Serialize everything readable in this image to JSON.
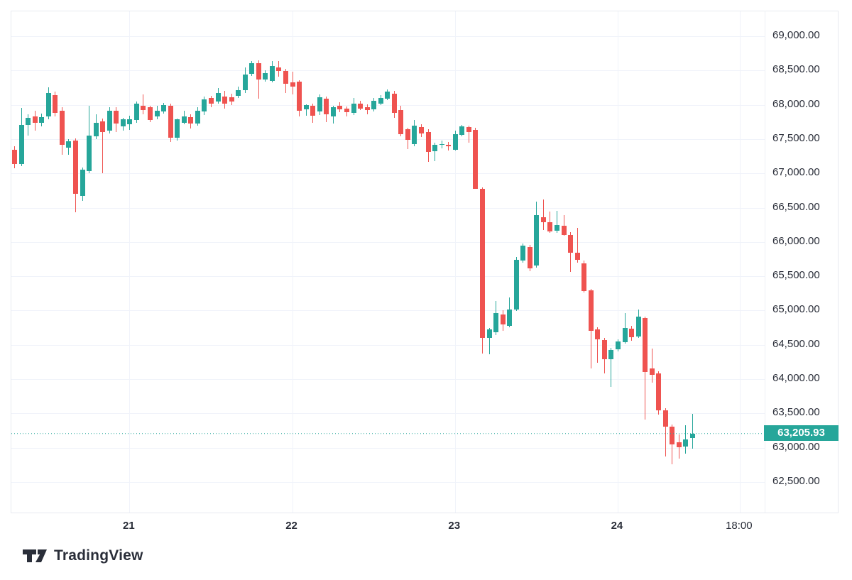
{
  "brand": {
    "logo_text": "TradingView"
  },
  "price_label": {
    "text": "63,205.93"
  },
  "colors": {
    "up": "#26a69a",
    "down": "#ef5350",
    "grid": "#f0f3fa",
    "axis_text": "#2a2e39",
    "border": "#e7eaf0",
    "price_line": "#26a69a",
    "price_label_bg": "#26a69a",
    "logo": "#2a2e39"
  },
  "y_axis": {
    "max": 69000,
    "min": 62500,
    "step": 500,
    "tick_labels": [
      "69,000.00",
      "68,500.00",
      "68,000.00",
      "67,500.00",
      "67,000.00",
      "66,500.00",
      "66,000.00",
      "65,500.00",
      "65,000.00",
      "64,500.00",
      "64,000.00",
      "63,500.00",
      "63,000.00",
      "62,500.00"
    ]
  },
  "x_axis": {
    "ticks": [
      {
        "label": "21",
        "candle_index": 17,
        "is_day": true
      },
      {
        "label": "22",
        "candle_index": 41,
        "is_day": true
      },
      {
        "label": "23",
        "candle_index": 65,
        "is_day": true
      },
      {
        "label": "24",
        "candle_index": 89,
        "is_day": true
      },
      {
        "label": "18:00",
        "candle_index": 107,
        "is_day": false
      }
    ]
  },
  "chart_data": {
    "type": "candlestick",
    "interval": "1h",
    "last_price": 63205.93,
    "last_price_text": "63,205.93",
    "ylim": [
      62500,
      69000
    ],
    "grid": true,
    "candles_ohlc": [
      [
        67345,
        67400,
        67080,
        67140
      ],
      [
        67140,
        67950,
        67100,
        67705
      ],
      [
        67705,
        67860,
        67550,
        67810
      ],
      [
        67830,
        67915,
        67625,
        67740
      ],
      [
        67740,
        67870,
        67680,
        67825
      ],
      [
        67825,
        68255,
        67790,
        68170
      ],
      [
        68140,
        68190,
        67830,
        67880
      ],
      [
        67915,
        67960,
        67270,
        67420
      ],
      [
        67375,
        67500,
        67270,
        67470
      ],
      [
        67480,
        67510,
        66435,
        66705
      ],
      [
        66675,
        67090,
        66600,
        67055
      ],
      [
        67035,
        67985,
        67000,
        67550
      ],
      [
        67545,
        67860,
        67500,
        67740
      ],
      [
        67760,
        67800,
        67000,
        67605
      ],
      [
        67625,
        67960,
        67580,
        67915
      ],
      [
        67910,
        67960,
        67595,
        67720
      ],
      [
        67690,
        67810,
        67625,
        67790
      ],
      [
        67710,
        67845,
        67640,
        67785
      ],
      [
        67780,
        68050,
        67740,
        68015
      ],
      [
        67990,
        68150,
        67860,
        67925
      ],
      [
        67965,
        67990,
        67750,
        67775
      ],
      [
        67830,
        67990,
        67790,
        67915
      ],
      [
        67905,
        68030,
        67870,
        68000
      ],
      [
        67985,
        68020,
        67465,
        67520
      ],
      [
        67525,
        67800,
        67480,
        67790
      ],
      [
        67745,
        67915,
        67720,
        67835
      ],
      [
        67820,
        67860,
        67655,
        67725
      ],
      [
        67730,
        67965,
        67700,
        67915
      ],
      [
        67900,
        68125,
        67860,
        68075
      ],
      [
        68100,
        68130,
        67965,
        68015
      ],
      [
        68050,
        68245,
        68020,
        68175
      ],
      [
        68120,
        68200,
        67945,
        68020
      ],
      [
        68110,
        68165,
        68000,
        68050
      ],
      [
        68125,
        68265,
        68100,
        68210
      ],
      [
        68210,
        68540,
        68170,
        68440
      ],
      [
        68450,
        68640,
        68420,
        68605
      ],
      [
        68605,
        68650,
        68090,
        68370
      ],
      [
        68370,
        68500,
        68330,
        68460
      ],
      [
        68350,
        68640,
        68330,
        68565
      ],
      [
        68540,
        68640,
        68415,
        68490
      ],
      [
        68490,
        68520,
        68170,
        68300
      ],
      [
        68330,
        68485,
        68155,
        68270
      ],
      [
        68340,
        68360,
        67830,
        67920
      ],
      [
        67935,
        68010,
        67845,
        68000
      ],
      [
        67990,
        68020,
        67745,
        67850
      ],
      [
        67900,
        68155,
        67855,
        68105
      ],
      [
        68090,
        68120,
        67745,
        67865
      ],
      [
        67830,
        67985,
        67725,
        67965
      ],
      [
        67985,
        68040,
        67900,
        67935
      ],
      [
        67945,
        67975,
        67825,
        67895
      ],
      [
        67880,
        68100,
        67855,
        68015
      ],
      [
        68020,
        68055,
        67920,
        67950
      ],
      [
        67970,
        68010,
        67860,
        67930
      ],
      [
        67930,
        68100,
        67905,
        68055
      ],
      [
        68015,
        68140,
        67990,
        68095
      ],
      [
        68090,
        68220,
        68060,
        68190
      ],
      [
        68165,
        68200,
        67810,
        67890
      ],
      [
        67920,
        67985,
        67545,
        67570
      ],
      [
        67640,
        67660,
        67345,
        67485
      ],
      [
        67430,
        67780,
        67400,
        67700
      ],
      [
        67675,
        67720,
        67530,
        67585
      ],
      [
        67605,
        67640,
        67160,
        67315
      ],
      [
        67320,
        67450,
        67180,
        67415
      ],
      [
        67430,
        67480,
        67370,
        67430
      ],
      [
        67420,
        67460,
        67340,
        67400
      ],
      [
        67345,
        67620,
        67330,
        67570
      ],
      [
        67565,
        67705,
        67540,
        67690
      ],
      [
        67680,
        67700,
        67450,
        67610
      ],
      [
        67635,
        67665,
        66770,
        66775
      ],
      [
        66775,
        66800,
        64375,
        64600
      ],
      [
        64600,
        64750,
        64365,
        64725
      ],
      [
        64680,
        65140,
        64640,
        64960
      ],
      [
        64940,
        65000,
        64700,
        64790
      ],
      [
        64780,
        65190,
        64760,
        65015
      ],
      [
        65015,
        65780,
        64990,
        65740
      ],
      [
        65730,
        65980,
        65700,
        65945
      ],
      [
        65925,
        65960,
        65580,
        65615
      ],
      [
        65650,
        66585,
        65620,
        66390
      ],
      [
        66360,
        66615,
        66175,
        66290
      ],
      [
        66290,
        66445,
        66130,
        66155
      ],
      [
        66160,
        66450,
        66130,
        66245
      ],
      [
        66240,
        66390,
        66090,
        66110
      ],
      [
        66100,
        66140,
        65560,
        65845
      ],
      [
        65845,
        66210,
        65700,
        65740
      ],
      [
        65690,
        65730,
        65260,
        65290
      ],
      [
        65290,
        65320,
        64165,
        64700
      ],
      [
        64730,
        64760,
        64240,
        64580
      ],
      [
        64565,
        64600,
        64085,
        64290
      ],
      [
        64290,
        64460,
        63895,
        64425
      ],
      [
        64430,
        64580,
        64400,
        64545
      ],
      [
        64545,
        64960,
        64520,
        64750
      ],
      [
        64740,
        64780,
        64560,
        64620
      ],
      [
        64620,
        65010,
        64600,
        64910
      ],
      [
        64890,
        64910,
        63410,
        64100
      ],
      [
        64160,
        64450,
        63950,
        64065
      ],
      [
        64080,
        64110,
        63480,
        63545
      ],
      [
        63545,
        63580,
        62875,
        63310
      ],
      [
        63310,
        63340,
        62760,
        63050
      ],
      [
        63075,
        63190,
        62840,
        63000
      ],
      [
        63020,
        63330,
        62915,
        63125
      ],
      [
        63140,
        63490,
        62985,
        63205.93
      ]
    ]
  }
}
